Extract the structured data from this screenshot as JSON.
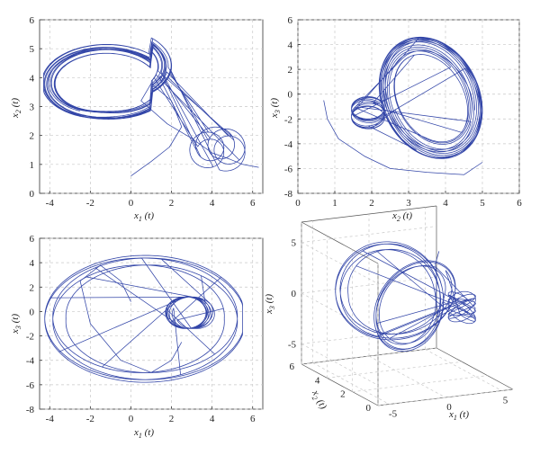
{
  "figure": {
    "line_color": "#3346a8",
    "grid": true
  },
  "chart_data": [
    {
      "type": "line",
      "panel": "top-left",
      "xlim": [
        -4.5,
        6.5
      ],
      "ylim": [
        0,
        6
      ],
      "xticks": [
        "-4",
        "-2",
        "0",
        "2",
        "4",
        "6"
      ],
      "yticks": [
        "0",
        "1",
        "2",
        "3",
        "4",
        "5",
        "6"
      ],
      "xlabel": {
        "main": "x",
        "sub": "1",
        "tail": " (t)"
      },
      "ylabel": {
        "main": "x",
        "sub": "2",
        "tail": " (t)"
      },
      "series": [
        {
          "x": [
            0.0,
            1.0,
            1.9,
            2.5,
            2.0,
            1.0,
            0.5,
            1.8,
            3.0,
            4.0,
            4.8,
            5.5,
            6.3
          ],
          "y": [
            0.6,
            1.1,
            1.6,
            2.3,
            3.2,
            3.8,
            3.2,
            2.4,
            1.9,
            1.4,
            1.2,
            1.0,
            0.9
          ]
        }
      ]
    },
    {
      "type": "line",
      "panel": "top-right",
      "xlim": [
        0,
        6
      ],
      "ylim": [
        -8,
        6
      ],
      "xticks": [
        "0",
        "1",
        "2",
        "3",
        "4",
        "5",
        "6"
      ],
      "yticks": [
        "-8",
        "-6",
        "-4",
        "-2",
        "0",
        "2",
        "4",
        "6"
      ],
      "xlabel": {
        "main": "x",
        "sub": "2",
        "tail": " (t)"
      },
      "ylabel": {
        "main": "x",
        "sub": "3",
        "tail": " (t)"
      },
      "series": [
        {
          "x": [
            0.7,
            0.8,
            1.1,
            1.8,
            2.5,
            3.5,
            4.5,
            5.0
          ],
          "y": [
            -0.5,
            -2.0,
            -3.6,
            -5.0,
            -6.0,
            -6.3,
            -6.5,
            -5.5
          ]
        }
      ]
    },
    {
      "type": "line",
      "panel": "bottom-left",
      "xlim": [
        -4.5,
        6.5
      ],
      "ylim": [
        -8,
        6
      ],
      "xticks": [
        "-4",
        "-2",
        "0",
        "2",
        "4",
        "6"
      ],
      "yticks": [
        "-8",
        "-6",
        "-4",
        "-2",
        "0",
        "2",
        "4",
        "6"
      ],
      "xlabel": {
        "main": "x",
        "sub": "1",
        "tail": " (t)"
      },
      "ylabel": {
        "main": "x",
        "sub": "3",
        "tail": " (t)"
      },
      "series": [
        {
          "x": [
            0.0,
            -0.5,
            -1.5,
            -2.5,
            -2.0,
            -0.5,
            1.0,
            2.0,
            2.5
          ],
          "y": [
            0.8,
            2.5,
            3.8,
            2.5,
            -1.0,
            -4.0,
            -5.0,
            -4.0,
            -2.5
          ]
        }
      ]
    },
    {
      "type": "line",
      "panel": "bottom-right-3d",
      "xlabel": {
        "main": "x",
        "sub": "1",
        "tail": " (t)"
      },
      "ylabel": {
        "main": "x",
        "sub": "2",
        "tail": " (t)"
      },
      "zlabel": {
        "main": "x",
        "sub": "3",
        "tail": " (t)"
      },
      "xticks": [
        "-5",
        "0",
        "5"
      ],
      "yticks": [
        "0",
        "2",
        "4",
        "6"
      ],
      "zticks": [
        "-5",
        "0",
        "5"
      ],
      "series": [
        {
          "x": [
            0.0,
            0.5,
            1.5,
            2.5,
            3.5
          ],
          "y": [
            0.6,
            1.2,
            2.0,
            3.0,
            3.6
          ],
          "z": [
            0.8,
            2.0,
            3.0,
            3.8,
            4.5
          ]
        }
      ]
    }
  ]
}
